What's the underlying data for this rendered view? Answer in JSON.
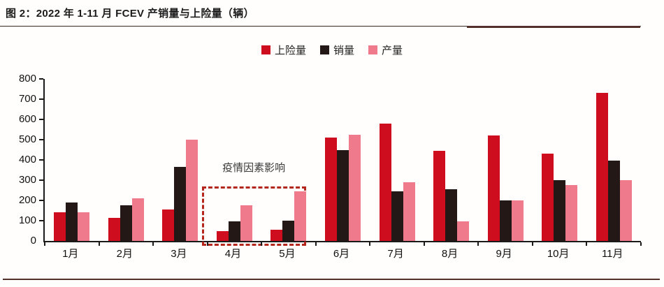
{
  "page": {
    "title": "图 2：2022 年 1-11 月 FCEV 产销量与上险量（辆）"
  },
  "chart_data": {
    "type": "bar",
    "title": "图 2：2022 年 1-11 月 FCEV 产销量与上险量（辆）",
    "categories": [
      "1月",
      "2月",
      "3月",
      "4月",
      "5月",
      "6月",
      "7月",
      "8月",
      "9月",
      "10月",
      "11月"
    ],
    "series": [
      {
        "name": "上险量",
        "color": "#ce0e1f",
        "values": [
          140,
          115,
          155,
          50,
          55,
          510,
          580,
          445,
          520,
          430,
          730
        ]
      },
      {
        "name": "销量",
        "color": "#231815",
        "values": [
          190,
          175,
          365,
          95,
          100,
          450,
          245,
          255,
          200,
          300,
          395
        ]
      },
      {
        "name": "产量",
        "color": "#ef7a8b",
        "values": [
          140,
          210,
          500,
          175,
          245,
          525,
          290,
          95,
          200,
          275,
          300
        ]
      }
    ],
    "xlabel": "",
    "ylabel": "",
    "ylim": [
      0,
      800
    ],
    "yticks": [
      0,
      100,
      200,
      300,
      400,
      500,
      600,
      700,
      800
    ],
    "grid": false,
    "legend_position": "top-center",
    "annotation": {
      "text": "疫情因素影响",
      "target_months": [
        "4月",
        "5月"
      ],
      "box_color": "#b4271d"
    }
  },
  "decor": {
    "accent_color": "#54302a",
    "axis_color": "#1a1a1a"
  }
}
